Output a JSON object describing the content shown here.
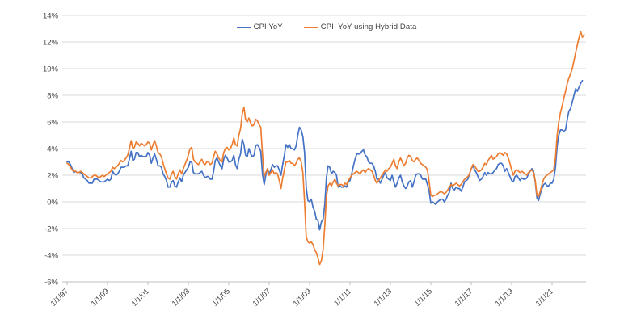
{
  "colors": {
    "background": "#ffffff",
    "grid": "#d9d9d9",
    "axis": "#bfbfbf",
    "text": "#444444",
    "series_blue": "#4472c4",
    "series_orange": "#ed7d31"
  },
  "chart_data": {
    "type": "line",
    "title": "",
    "xlabel": "",
    "ylabel": "",
    "grid": "horizontal",
    "legend_position": "top-center",
    "ylim": [
      -6,
      14
    ],
    "y_step": 2,
    "y_tick_labels": [
      "-6%",
      "-4%",
      "-2%",
      "0%",
      "2%",
      "4%",
      "6%",
      "8%",
      "10%",
      "12%",
      "14%"
    ],
    "x_start_year": 1997,
    "x_points_per_year": 12,
    "x_tick_years": [
      1997,
      1999,
      2001,
      2003,
      2005,
      2007,
      2009,
      2011,
      2013,
      2015,
      2017,
      2019,
      2021
    ],
    "x_tick_labels": [
      "1/1/97",
      "1/1/99",
      "1/1/01",
      "1/1/03",
      "1/1/05",
      "1/1/07",
      "1/1/09",
      "1/1/11",
      "1/1/13",
      "1/1/15",
      "1/1/17",
      "1/1/19",
      "1/1/21"
    ],
    "series": [
      {
        "name": "CPI YoY",
        "color": "#4472c4",
        "start": "1/1997",
        "values": [
          3.0,
          3.0,
          2.8,
          2.5,
          2.2,
          2.3,
          2.2,
          2.2,
          2.2,
          2.1,
          1.8,
          1.7,
          1.6,
          1.4,
          1.4,
          1.4,
          1.7,
          1.7,
          1.7,
          1.6,
          1.5,
          1.5,
          1.5,
          1.6,
          1.7,
          1.6,
          1.7,
          2.3,
          2.1,
          2.0,
          2.1,
          2.3,
          2.6,
          2.6,
          2.6,
          2.7,
          2.7,
          3.2,
          3.8,
          3.1,
          3.2,
          3.7,
          3.7,
          3.4,
          3.5,
          3.4,
          3.4,
          3.4,
          3.7,
          3.5,
          2.9,
          3.3,
          3.6,
          3.2,
          2.7,
          2.7,
          2.6,
          2.1,
          1.9,
          1.6,
          1.1,
          1.1,
          1.5,
          1.6,
          1.2,
          1.1,
          1.5,
          1.8,
          1.5,
          2.0,
          2.2,
          2.4,
          2.6,
          3.0,
          3.0,
          2.2,
          2.1,
          2.1,
          2.1,
          2.2,
          2.3,
          2.0,
          1.8,
          1.9,
          1.9,
          1.7,
          1.7,
          2.3,
          3.1,
          3.3,
          3.0,
          2.7,
          2.5,
          3.2,
          3.5,
          3.3,
          3.0,
          3.0,
          3.1,
          3.5,
          2.8,
          2.5,
          3.2,
          3.6,
          4.7,
          4.3,
          3.5,
          3.4,
          4.0,
          3.6,
          3.4,
          3.5,
          4.2,
          4.3,
          4.1,
          3.8,
          2.1,
          1.3,
          2.0,
          2.5,
          2.1,
          2.4,
          2.8,
          2.6,
          2.7,
          2.7,
          2.4,
          2.0,
          2.8,
          3.5,
          4.3,
          4.1,
          4.3,
          4.0,
          4.0,
          3.9,
          4.2,
          5.0,
          5.6,
          5.4,
          4.9,
          3.7,
          1.1,
          0.1,
          0.0,
          0.2,
          -0.4,
          -0.7,
          -1.3,
          -1.4,
          -2.1,
          -1.5,
          -1.3,
          -0.2,
          1.8,
          2.7,
          2.6,
          2.1,
          2.3,
          2.2,
          2.0,
          1.1,
          1.2,
          1.1,
          1.1,
          1.2,
          1.1,
          1.5,
          1.6,
          2.1,
          2.7,
          3.2,
          3.6,
          3.6,
          3.6,
          3.8,
          3.9,
          3.5,
          3.4,
          3.0,
          2.9,
          2.9,
          2.7,
          2.3,
          1.7,
          1.7,
          1.4,
          1.7,
          2.0,
          2.2,
          1.8,
          1.7,
          1.6,
          2.0,
          1.5,
          1.1,
          1.4,
          1.8,
          2.0,
          1.5,
          1.2,
          1.0,
          1.2,
          1.5,
          1.6,
          1.1,
          1.5,
          2.0,
          2.1,
          2.1,
          2.0,
          1.7,
          1.7,
          1.7,
          1.3,
          0.8,
          -0.1,
          0.0,
          -0.1,
          -0.2,
          0.0,
          0.1,
          0.2,
          0.2,
          0.0,
          0.2,
          0.5,
          0.7,
          1.4,
          1.0,
          0.9,
          1.1,
          1.0,
          1.0,
          0.8,
          1.1,
          1.5,
          1.6,
          1.7,
          2.1,
          2.5,
          2.7,
          2.4,
          2.2,
          1.9,
          1.6,
          1.7,
          1.9,
          2.2,
          2.0,
          2.2,
          2.1,
          2.1,
          2.2,
          2.4,
          2.5,
          2.8,
          2.9,
          2.9,
          2.7,
          2.3,
          2.5,
          2.2,
          1.9,
          1.6,
          1.5,
          1.9,
          2.0,
          1.8,
          1.6,
          1.8,
          1.7,
          1.7,
          1.8,
          2.1,
          2.3,
          2.5,
          2.3,
          1.5,
          0.3,
          0.1,
          0.6,
          1.0,
          1.3,
          1.4,
          1.2,
          1.2,
          1.4,
          1.4,
          1.7,
          2.6,
          4.2,
          5.0,
          5.4,
          5.4,
          5.3,
          5.4,
          6.2,
          6.8,
          7.0,
          7.5,
          8.0,
          8.5,
          8.3,
          8.6,
          8.9,
          9.1
        ]
      },
      {
        "name": "CPI  YoY using Hybrid Data",
        "color": "#ed7d31",
        "start": "1/1997",
        "values": [
          2.9,
          2.8,
          2.6,
          2.4,
          2.3,
          2.3,
          2.2,
          2.2,
          2.3,
          2.2,
          2.1,
          2.0,
          1.9,
          1.8,
          1.8,
          1.9,
          2.0,
          2.0,
          1.9,
          1.8,
          1.9,
          2.0,
          1.9,
          2.0,
          2.1,
          2.2,
          2.3,
          2.6,
          2.5,
          2.6,
          2.7,
          2.9,
          3.1,
          3.0,
          3.1,
          3.3,
          3.5,
          4.0,
          4.6,
          4.0,
          4.1,
          4.5,
          4.4,
          4.2,
          4.4,
          4.3,
          4.2,
          4.3,
          4.5,
          4.4,
          3.9,
          4.3,
          4.6,
          4.2,
          3.7,
          3.6,
          3.4,
          2.9,
          2.5,
          2.1,
          1.8,
          1.7,
          2.1,
          2.3,
          1.9,
          1.7,
          2.1,
          2.4,
          2.1,
          2.5,
          2.8,
          3.1,
          3.5,
          4.0,
          4.1,
          3.2,
          3.0,
          2.9,
          2.8,
          3.0,
          3.2,
          2.9,
          2.8,
          3.0,
          3.0,
          2.8,
          2.9,
          3.4,
          3.8,
          3.6,
          3.3,
          3.1,
          3.0,
          3.7,
          4.0,
          4.1,
          3.9,
          4.0,
          4.3,
          4.8,
          4.3,
          4.2,
          5.0,
          5.5,
          6.6,
          7.1,
          6.2,
          6.0,
          6.3,
          5.9,
          5.7,
          5.8,
          6.2,
          6.1,
          5.8,
          5.6,
          3.6,
          1.9,
          2.2,
          2.5,
          2.0,
          2.2,
          2.4,
          2.1,
          2.2,
          2.1,
          1.6,
          1.0,
          1.8,
          2.4,
          3.0,
          3.0,
          3.1,
          2.9,
          2.9,
          2.7,
          2.9,
          3.2,
          3.3,
          3.0,
          2.2,
          0.0,
          -2.6,
          -3.0,
          -3.1,
          -3.0,
          -3.2,
          -3.6,
          -3.8,
          -4.2,
          -4.7,
          -4.4,
          -3.6,
          -1.8,
          0.4,
          1.2,
          1.4,
          1.2,
          1.5,
          1.7,
          1.4,
          1.2,
          1.3,
          1.3,
          1.2,
          1.4,
          1.3,
          1.6,
          1.8,
          2.0,
          2.1,
          2.2,
          2.3,
          2.2,
          2.1,
          2.3,
          2.4,
          2.2,
          2.4,
          2.5,
          2.4,
          2.3,
          2.0,
          1.6,
          1.4,
          1.6,
          1.8,
          2.0,
          2.2,
          2.4,
          2.3,
          2.5,
          2.6,
          2.9,
          3.2,
          2.7,
          2.5,
          3.0,
          3.3,
          3.0,
          2.7,
          2.9,
          3.3,
          3.5,
          3.4,
          3.1,
          3.0,
          3.2,
          3.3,
          3.1,
          2.9,
          2.8,
          2.7,
          2.6,
          2.4,
          1.5,
          0.5,
          0.4,
          0.5,
          0.5,
          0.6,
          0.7,
          0.8,
          0.7,
          0.6,
          0.7,
          0.9,
          1.1,
          1.3,
          1.2,
          1.3,
          1.4,
          1.3,
          1.2,
          1.3,
          1.5,
          1.7,
          1.8,
          1.9,
          2.1,
          2.5,
          2.8,
          2.7,
          2.5,
          2.3,
          2.3,
          2.4,
          2.6,
          2.9,
          2.8,
          3.1,
          3.3,
          3.5,
          3.2,
          3.3,
          3.4,
          3.6,
          3.7,
          3.6,
          3.5,
          3.7,
          3.6,
          3.3,
          2.9,
          2.4,
          2.0,
          2.3,
          2.4,
          2.3,
          2.2,
          2.3,
          2.2,
          2.1,
          2.0,
          2.2,
          2.3,
          2.4,
          2.2,
          1.6,
          0.5,
          0.4,
          0.8,
          1.3,
          1.7,
          1.9,
          2.0,
          2.1,
          2.2,
          2.3,
          2.4,
          3.3,
          5.0,
          6.0,
          6.7,
          7.2,
          7.8,
          8.3,
          8.9,
          9.3,
          9.6,
          10.0,
          10.6,
          11.2,
          11.8,
          12.3,
          12.8,
          12.35,
          12.55
        ]
      }
    ]
  }
}
